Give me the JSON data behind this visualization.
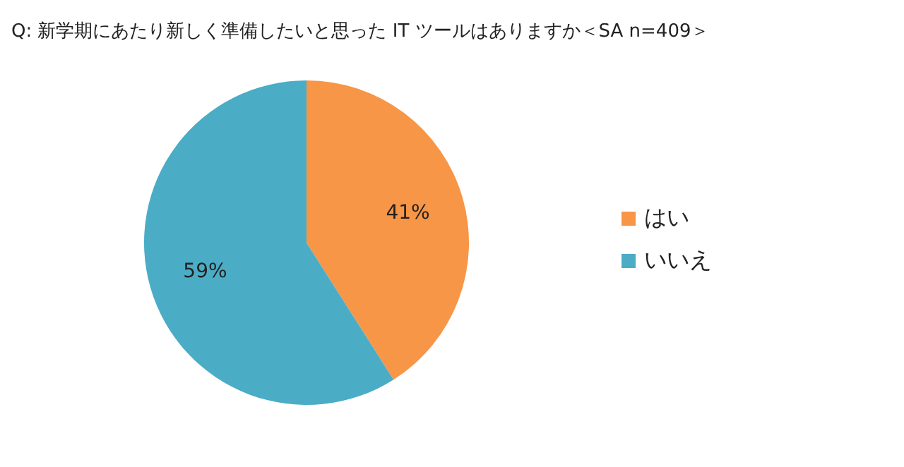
{
  "chart_data": {
    "type": "pie",
    "title": "Q:  新学期にあたり新しく準備したいと思った IT ツールはありますか＜SA n=409＞",
    "categories": [
      "はい",
      "いいえ"
    ],
    "values": [
      41,
      59
    ],
    "value_labels": [
      "41%",
      "59%"
    ],
    "colors": [
      "#f79646",
      "#4bacc6"
    ],
    "legend": "right"
  }
}
